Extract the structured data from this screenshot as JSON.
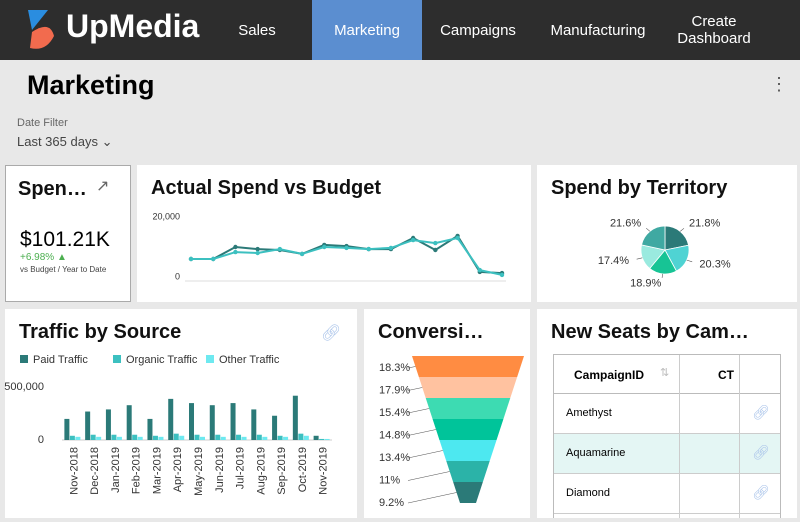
{
  "nav": {
    "logo": "UpMedia",
    "items": [
      "Sales",
      "Marketing",
      "Campaigns",
      "Manufacturing",
      "Create Dashboard"
    ],
    "active": 1
  },
  "page": {
    "title": "Marketing",
    "filter_label": "Date Filter",
    "filter_value": "Last 365 days"
  },
  "kpi": {
    "title": "Spen…",
    "value": "$101.21K",
    "change": "+6.98%",
    "note": "vs Budget / Year to Date"
  },
  "chart_data": [
    {
      "type": "line",
      "title": "Actual Spend vs Budget",
      "categories": [
        null,
        null,
        null,
        null,
        null,
        null,
        null,
        null,
        null,
        null,
        null,
        null,
        null,
        null,
        null
      ],
      "series": [
        {
          "color": "#2b7a78",
          "values": [
            6000,
            6000,
            10000,
            9300,
            9000,
            7700,
            10700,
            10300,
            9300,
            9300,
            13000,
            9000,
            13700,
            1700,
            1300
          ]
        },
        {
          "color": "#3cc0c0",
          "values": [
            6000,
            6000,
            8300,
            8000,
            9300,
            7700,
            10000,
            9700,
            9300,
            9700,
            12300,
            11300,
            13000,
            2300,
            700
          ]
        }
      ],
      "ylim": [
        0,
        20000
      ],
      "yticks": [
        0,
        {
          "value": 20000,
          "label": "20,000"
        }
      ]
    },
    {
      "type": "pie",
      "title": "Spend by Territory",
      "values": [
        21.8,
        20.3,
        18.9,
        17.4,
        21.6
      ],
      "value_labels": [
        "21.8%",
        "20.3%",
        "18.9%",
        "17.4%",
        "21.6%"
      ],
      "colors": [
        "#2b7a78",
        "#4fd3d3",
        "#17c495",
        "#9aeadf",
        "#3fa9a2"
      ]
    },
    {
      "type": "bar",
      "title": "Traffic by Source",
      "categories": [
        "Nov-2018",
        "Dec-2018",
        "Jan-2019",
        "Feb-2019",
        "Mar-2019",
        "Apr-2019",
        "May-2019",
        "Jun-2019",
        "Jul-2019",
        "Aug-2019",
        "Sep-2019",
        "Oct-2019",
        "Nov-2019"
      ],
      "series": [
        {
          "name": "Paid Traffic",
          "color": "#2b7a78",
          "values": [
            200000,
            270000,
            290000,
            330000,
            200000,
            390000,
            350000,
            330000,
            350000,
            290000,
            230000,
            420000,
            40000
          ]
        },
        {
          "name": "Organic Traffic",
          "color": "#3cc0c0",
          "values": [
            40000,
            50000,
            50000,
            50000,
            40000,
            60000,
            50000,
            50000,
            50000,
            50000,
            40000,
            60000,
            10000
          ]
        },
        {
          "name": "Other Traffic",
          "color": "#6ee9f0",
          "values": [
            30000,
            30000,
            30000,
            30000,
            30000,
            40000,
            30000,
            30000,
            30000,
            30000,
            30000,
            40000,
            10000
          ]
        }
      ],
      "ylim": [
        0,
        550000
      ],
      "yticks": [
        0,
        {
          "value": 500000,
          "label": "500,000"
        }
      ]
    },
    {
      "type": "funnel",
      "title": "Conversi…",
      "values": [
        18.3,
        17.9,
        15.4,
        14.8,
        13.4,
        11,
        9.2
      ],
      "value_labels": [
        "18.3%",
        "17.9%",
        "15.4%",
        "14.8%",
        "13.4%",
        "11%",
        "9.2%"
      ],
      "colors": [
        "#ff8c42",
        "#ffc2a0",
        "#3ddbb2",
        "#00c49a",
        "#4de8f0",
        "#2bb3a8",
        "#2b7a78"
      ]
    }
  ],
  "table": {
    "title": "New Seats by Cam…",
    "columns": [
      "CampaignID",
      "CT"
    ],
    "rows": [
      "Amethyst",
      "Aquamarine",
      "Diamond"
    ]
  }
}
